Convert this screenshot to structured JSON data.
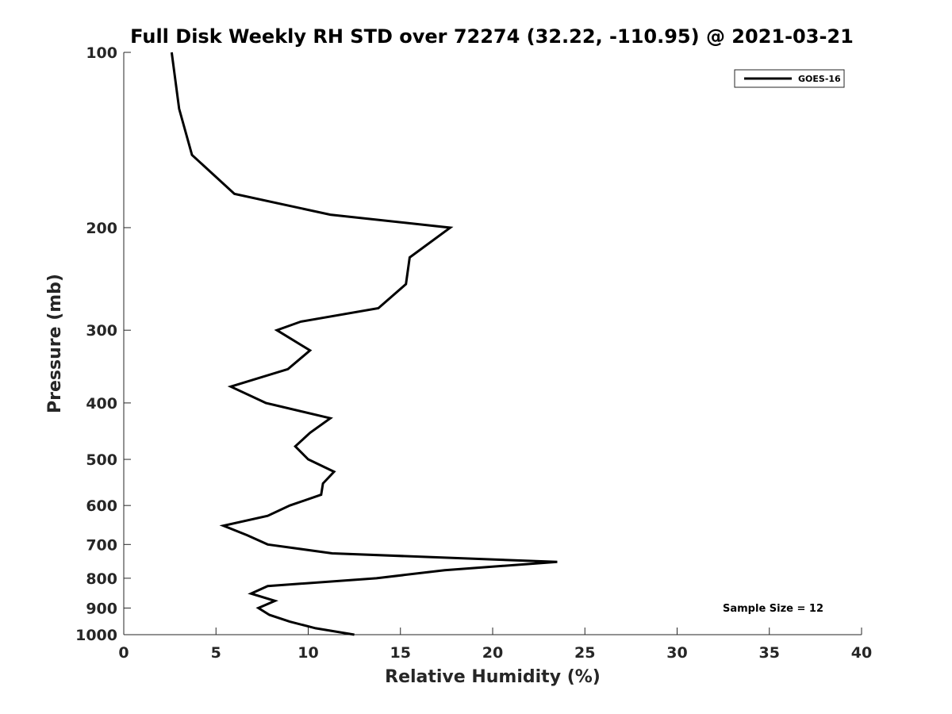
{
  "chart_data": {
    "type": "line",
    "title": "Full Disk Weekly RH STD over 72274 (32.22, -110.95) @ 2021-03-21",
    "xlabel": "Relative Humidity (%)",
    "ylabel": "Pressure (mb)",
    "xlim": [
      0,
      40
    ],
    "ylim": [
      100,
      1000
    ],
    "y_scale": "log",
    "y_reversed": true,
    "x_ticks": [
      0,
      5,
      10,
      15,
      20,
      25,
      30,
      35,
      40
    ],
    "y_ticks": [
      100,
      200,
      300,
      400,
      500,
      600,
      700,
      800,
      900,
      1000
    ],
    "grid": false,
    "legend_position": "top-right",
    "annotation": "Sample Size = 12",
    "series": [
      {
        "name": "GOES-16",
        "color": "#000000",
        "points": [
          {
            "x": 2.6,
            "p": 100
          },
          {
            "x": 3.0,
            "p": 125
          },
          {
            "x": 3.7,
            "p": 150
          },
          {
            "x": 6.0,
            "p": 175
          },
          {
            "x": 11.2,
            "p": 190
          },
          {
            "x": 17.7,
            "p": 200
          },
          {
            "x": 15.5,
            "p": 225
          },
          {
            "x": 15.3,
            "p": 250
          },
          {
            "x": 13.8,
            "p": 275
          },
          {
            "x": 9.6,
            "p": 290
          },
          {
            "x": 8.3,
            "p": 300
          },
          {
            "x": 10.1,
            "p": 325
          },
          {
            "x": 8.9,
            "p": 350
          },
          {
            "x": 5.8,
            "p": 375
          },
          {
            "x": 7.7,
            "p": 400
          },
          {
            "x": 11.2,
            "p": 425
          },
          {
            "x": 10.1,
            "p": 450
          },
          {
            "x": 9.3,
            "p": 475
          },
          {
            "x": 10.0,
            "p": 500
          },
          {
            "x": 11.4,
            "p": 525
          },
          {
            "x": 10.8,
            "p": 550
          },
          {
            "x": 10.7,
            "p": 575
          },
          {
            "x": 9.0,
            "p": 600
          },
          {
            "x": 7.8,
            "p": 625
          },
          {
            "x": 5.4,
            "p": 650
          },
          {
            "x": 6.7,
            "p": 675
          },
          {
            "x": 7.8,
            "p": 700
          },
          {
            "x": 11.3,
            "p": 725
          },
          {
            "x": 23.5,
            "p": 750
          },
          {
            "x": 17.4,
            "p": 775
          },
          {
            "x": 13.7,
            "p": 800
          },
          {
            "x": 7.8,
            "p": 825
          },
          {
            "x": 6.9,
            "p": 850
          },
          {
            "x": 8.2,
            "p": 875
          },
          {
            "x": 7.3,
            "p": 900
          },
          {
            "x": 7.9,
            "p": 925
          },
          {
            "x": 9.0,
            "p": 950
          },
          {
            "x": 10.4,
            "p": 975
          },
          {
            "x": 12.5,
            "p": 1000
          }
        ]
      }
    ]
  }
}
